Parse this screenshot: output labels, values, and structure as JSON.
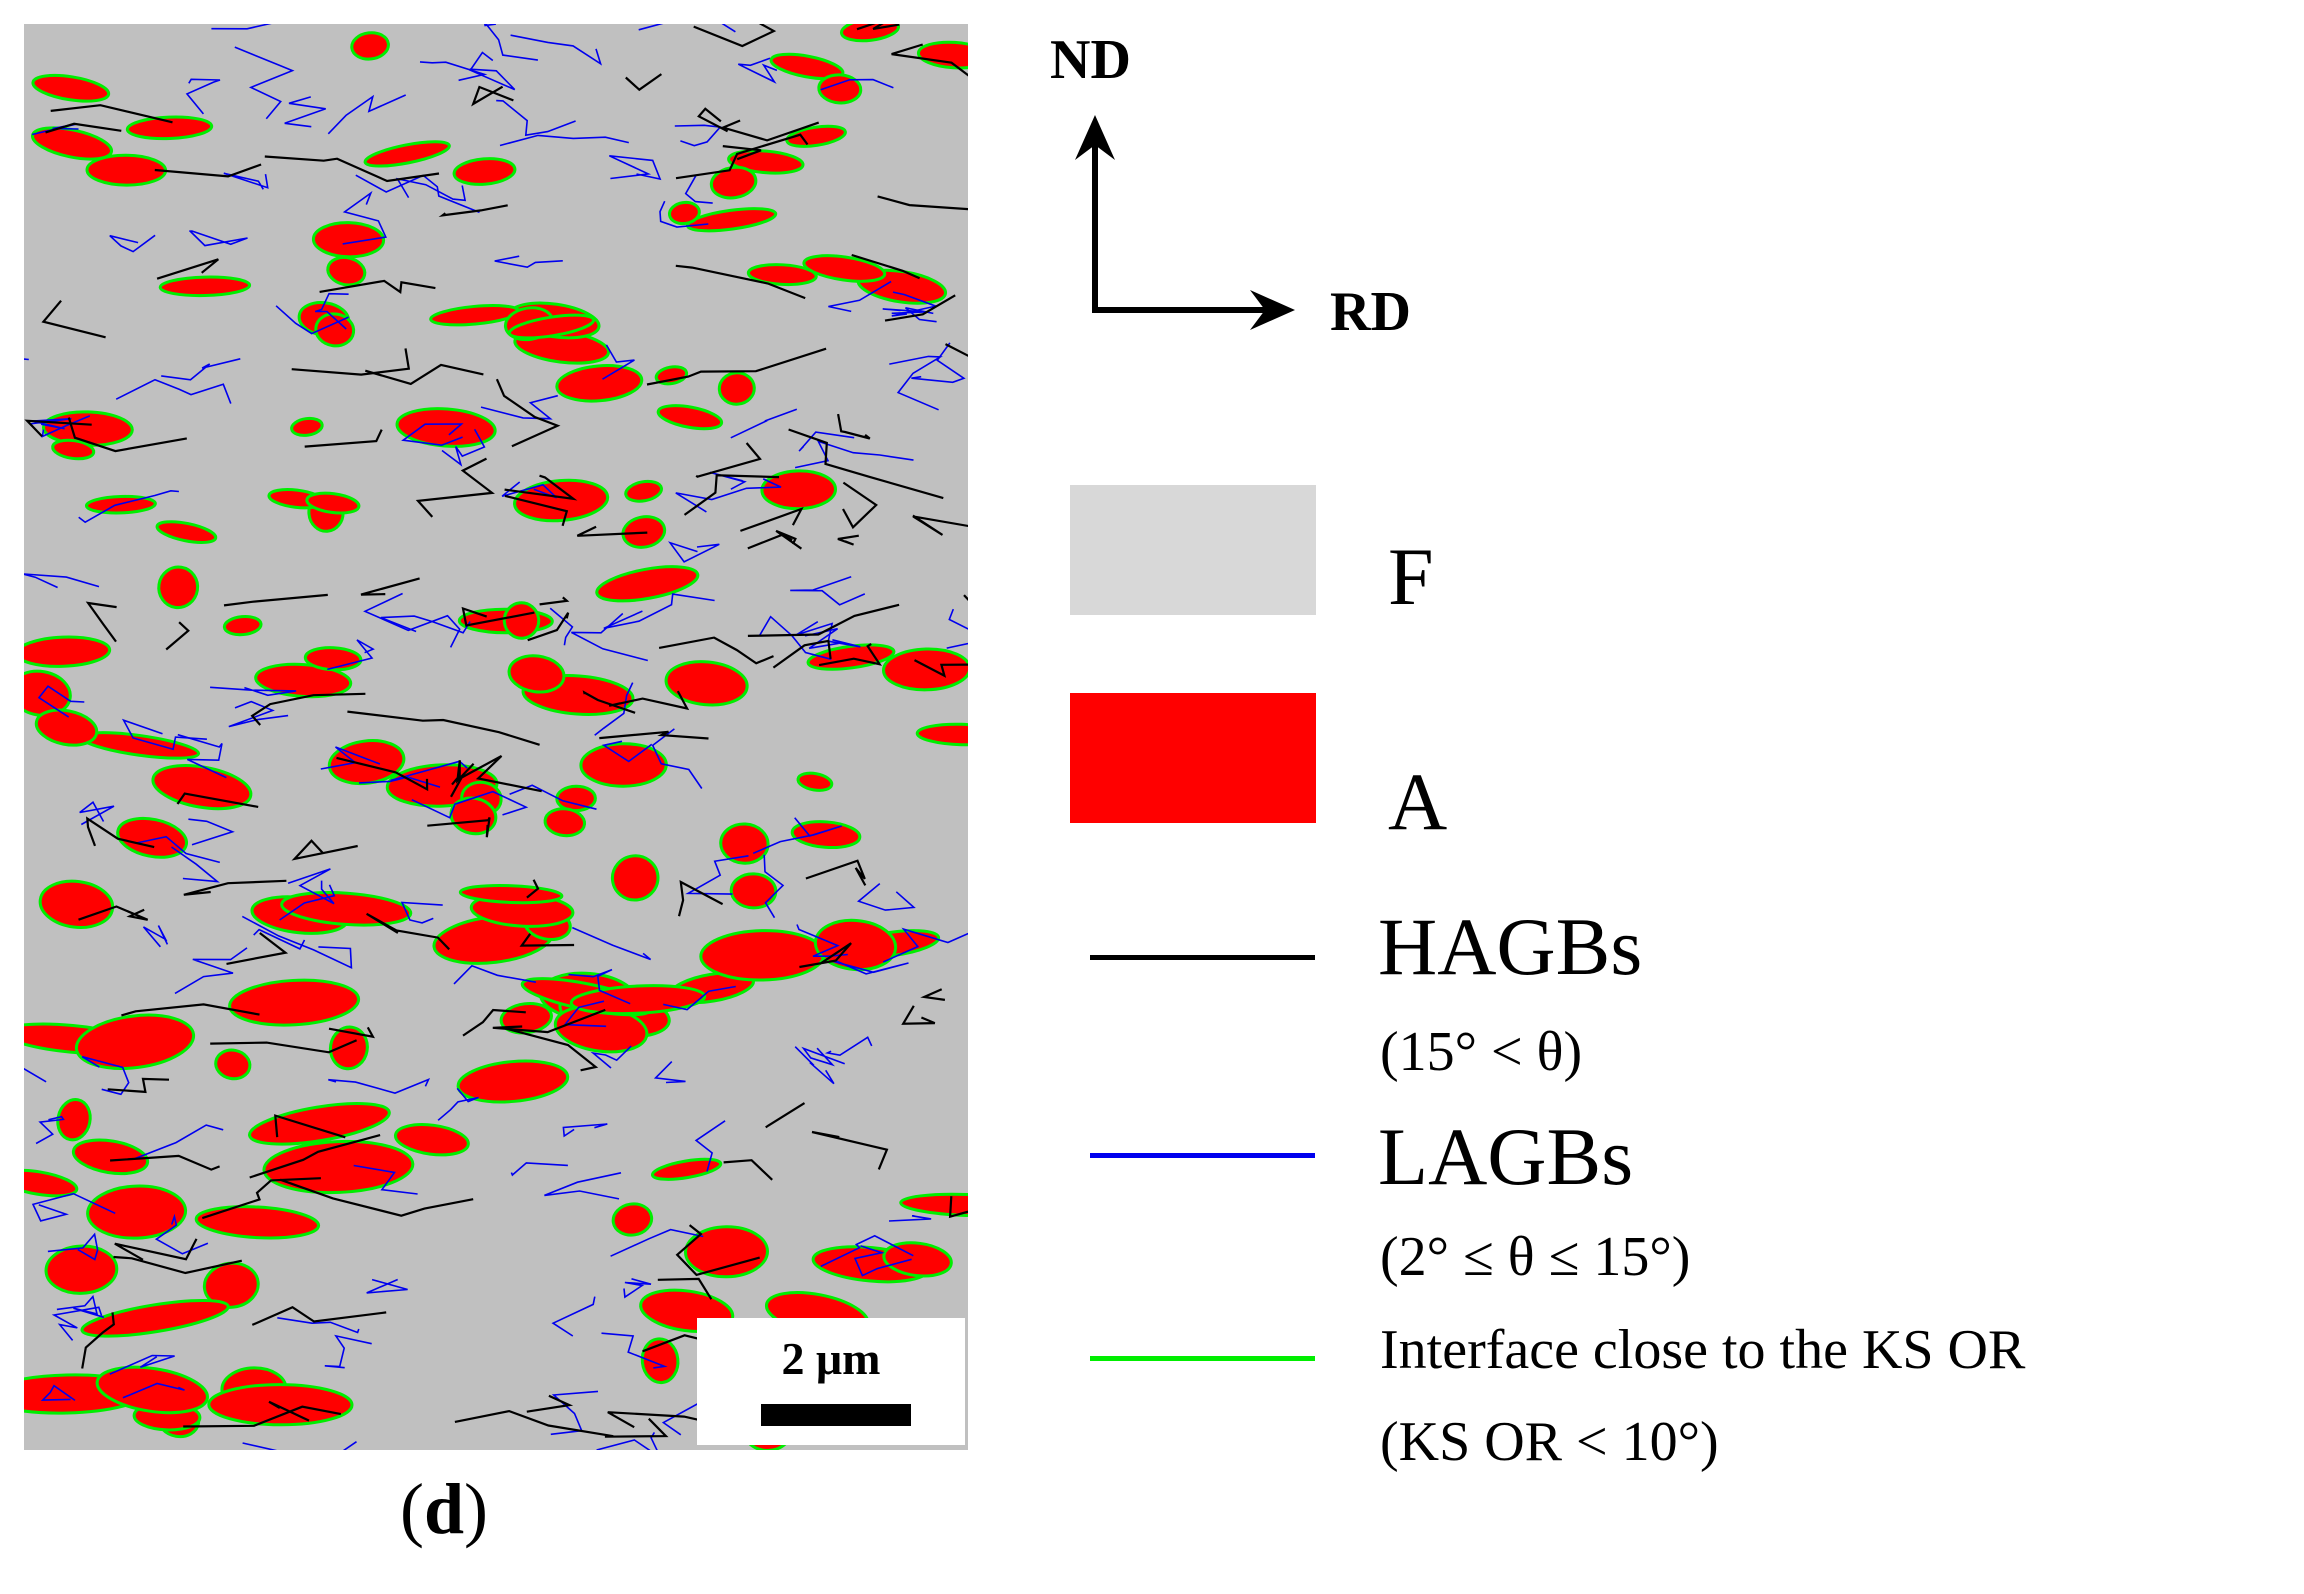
{
  "figure": {
    "panel_label": "d",
    "colors": {
      "ferrite": "#c0c0c0",
      "austenite": "#ff0000",
      "hagb": "#000000",
      "lagb": "#0000ee",
      "ks_interface": "#00ee00"
    }
  },
  "orientation": {
    "vertical": "ND",
    "horizontal": "RD"
  },
  "scale_bar": {
    "label": "2 μm"
  },
  "legend": {
    "phase_f": {
      "label": "F",
      "color": "#d8d8d8"
    },
    "phase_a": {
      "label": "A",
      "color": "#ff0000"
    },
    "hagb": {
      "label": "HAGBs",
      "condition": "(15° < θ)",
      "color": "#000000"
    },
    "lagb": {
      "label": "LAGBs",
      "condition": "(2° ≤ θ ≤ 15°)",
      "color": "#0000ee"
    },
    "ks": {
      "label": "Interface close to the KS OR",
      "condition": "(KS OR < 10°)",
      "color": "#00ee00"
    }
  }
}
